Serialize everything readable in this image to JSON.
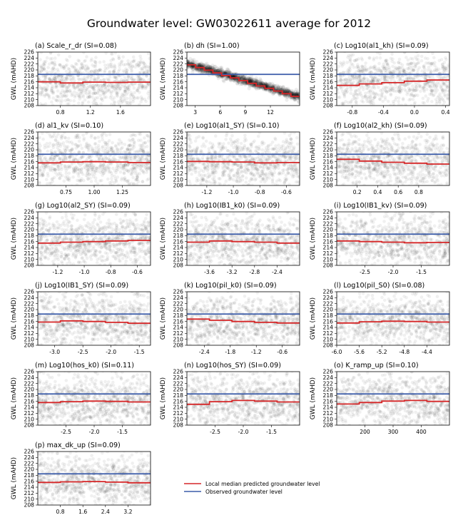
{
  "title": "Groundwater level: GW03022611 average for 2012",
  "ylabel": "GWL (mAHD)",
  "colors": {
    "predicted": "#d62728",
    "observed": "#3a5ba9",
    "points": "#000000"
  },
  "legend": {
    "position": "lower-right",
    "entries": [
      {
        "label": "Local median predicted groundwater level",
        "color": "#d62728"
      },
      {
        "label": "Observed groundwater level",
        "color": "#3a5ba9"
      }
    ]
  },
  "chart_data": [
    {
      "type": "scatter",
      "title": "(a) Scale_r_dr (SI=0.08)",
      "xlim": [
        0.5,
        2.0
      ],
      "ylim": [
        208,
        226
      ],
      "xticks": [
        "0.8",
        "1.2",
        "1.6"
      ],
      "xtick_values": [
        0.8,
        1.2,
        1.6
      ],
      "yticks": [
        208,
        210,
        212,
        214,
        216,
        218,
        220,
        222,
        224,
        226
      ],
      "observed": 218.5,
      "median": [
        216.0,
        215.6,
        215.9,
        215.8,
        215.9
      ]
    },
    {
      "type": "scatter",
      "title": "(b) dh (SI=1.00)",
      "xlim": [
        2.0,
        15.5
      ],
      "ylim": [
        208,
        226
      ],
      "xticks": [
        "3",
        "6",
        "9",
        "12"
      ],
      "xtick_values": [
        3,
        6,
        9,
        12
      ],
      "yticks": [
        208,
        210,
        212,
        214,
        216,
        218,
        220,
        222,
        224,
        226
      ],
      "observed": 218.5,
      "median": [
        221.7,
        220.8,
        219.9,
        219.0,
        218.1,
        217.3,
        216.4,
        215.5,
        214.6,
        213.8,
        212.9,
        212.0,
        211.1
      ]
    },
    {
      "type": "scatter",
      "title": "(c) Log10(al1_kh) (SI=0.09)",
      "xlim": [
        -1.0,
        0.45
      ],
      "ylim": [
        208,
        226
      ],
      "xticks": [
        "-0.8",
        "-0.4",
        "0.0",
        "0.4"
      ],
      "xtick_values": [
        -0.8,
        -0.4,
        0.0,
        0.4
      ],
      "yticks": [
        208,
        210,
        212,
        214,
        216,
        218,
        220,
        222,
        224,
        226
      ],
      "observed": 218.5,
      "median": [
        214.8,
        215.3,
        215.7,
        216.2,
        216.6
      ]
    },
    {
      "type": "scatter",
      "title": "(d) al1_kv (SI=0.10)",
      "xlim": [
        0.5,
        1.5
      ],
      "ylim": [
        208,
        226
      ],
      "xticks": [
        "0.75",
        "1.00",
        "1.25"
      ],
      "xtick_values": [
        0.75,
        1.0,
        1.25
      ],
      "yticks": [
        208,
        210,
        212,
        214,
        216,
        218,
        220,
        222,
        224,
        226
      ],
      "observed": 218.5,
      "median": [
        215.6,
        215.9,
        216.0,
        215.9,
        215.7
      ]
    },
    {
      "type": "scatter",
      "title": "(e) Log10(al1_SY) (SI=0.10)",
      "xlim": [
        -1.35,
        -0.5
      ],
      "ylim": [
        208,
        226
      ],
      "xticks": [
        "-1.2",
        "-1.0",
        "-0.8",
        "-0.6"
      ],
      "xtick_values": [
        -1.2,
        -1.0,
        -0.8,
        -0.6
      ],
      "yticks": [
        208,
        210,
        212,
        214,
        216,
        218,
        220,
        222,
        224,
        226
      ],
      "observed": 218.5,
      "median": [
        216.1,
        216.0,
        215.9,
        215.6,
        215.7
      ]
    },
    {
      "type": "scatter",
      "title": "(f) Log10(al2_kh) (SI=0.09)",
      "xlim": [
        0.0,
        1.1
      ],
      "ylim": [
        208,
        226
      ],
      "xticks": [
        "0.2",
        "0.4",
        "0.6",
        "0.8"
      ],
      "xtick_values": [
        0.2,
        0.4,
        0.6,
        0.8
      ],
      "yticks": [
        208,
        210,
        212,
        214,
        216,
        218,
        220,
        222,
        224,
        226
      ],
      "observed": 218.5,
      "median": [
        216.8,
        216.2,
        215.8,
        215.5,
        215.2
      ]
    },
    {
      "type": "scatter",
      "title": "(g) Log10(al2_SY) (SI=0.09)",
      "xlim": [
        -1.35,
        -0.5
      ],
      "ylim": [
        208,
        226
      ],
      "xticks": [
        "-1.2",
        "-1.0",
        "-0.8",
        "-0.6"
      ],
      "xtick_values": [
        -1.2,
        -1.0,
        -0.8,
        -0.6
      ],
      "yticks": [
        208,
        210,
        212,
        214,
        216,
        218,
        220,
        222,
        224,
        226
      ],
      "observed": 218.5,
      "median": [
        215.5,
        215.8,
        216.0,
        216.2,
        216.4
      ]
    },
    {
      "type": "scatter",
      "title": "(h) Log10(IB1_k0) (SI=0.09)",
      "xlim": [
        -4.0,
        -2.0
      ],
      "ylim": [
        208,
        226
      ],
      "xticks": [
        "-3.6",
        "-3.2",
        "-2.8",
        "-2.4"
      ],
      "xtick_values": [
        -3.6,
        -3.2,
        -2.8,
        -2.4
      ],
      "yticks": [
        208,
        210,
        212,
        214,
        216,
        218,
        220,
        222,
        224,
        226
      ],
      "observed": 218.5,
      "median": [
        215.8,
        216.2,
        216.0,
        215.8,
        215.5
      ]
    },
    {
      "type": "scatter",
      "title": "(i) Log10(IB1_kv) (SI=0.09)",
      "xlim": [
        -3.0,
        -1.0
      ],
      "ylim": [
        208,
        226
      ],
      "xticks": [
        "-2.5",
        "-2.0",
        "-1.5"
      ],
      "xtick_values": [
        -2.5,
        -2.0,
        -1.5
      ],
      "yticks": [
        208,
        210,
        212,
        214,
        216,
        218,
        220,
        222,
        224,
        226
      ],
      "observed": 218.5,
      "median": [
        216.2,
        216.0,
        215.8,
        215.6,
        215.7
      ]
    },
    {
      "type": "scatter",
      "title": "(j) Log10(IB1_SY) (SI=0.09)",
      "xlim": [
        -3.3,
        -1.3
      ],
      "ylim": [
        208,
        226
      ],
      "xticks": [
        "-3.0",
        "-2.5",
        "-2.0",
        "-1.5"
      ],
      "xtick_values": [
        -3.0,
        -2.5,
        -2.0,
        -1.5
      ],
      "yticks": [
        208,
        210,
        212,
        214,
        216,
        218,
        220,
        222,
        224,
        226
      ],
      "observed": 218.5,
      "median": [
        215.8,
        216.2,
        216.0,
        215.7,
        215.4
      ]
    },
    {
      "type": "scatter",
      "title": "(k) Log10(pil_k0) (SI=0.09)",
      "xlim": [
        -2.8,
        -0.2
      ],
      "ylim": [
        208,
        226
      ],
      "xticks": [
        "-2.4",
        "-1.8",
        "-1.2",
        "-0.6"
      ],
      "xtick_values": [
        -2.4,
        -1.8,
        -1.2,
        -0.6
      ],
      "yticks": [
        208,
        210,
        212,
        214,
        216,
        218,
        220,
        222,
        224,
        226
      ],
      "observed": 218.5,
      "median": [
        216.8,
        216.4,
        216.0,
        215.7,
        215.5
      ]
    },
    {
      "type": "scatter",
      "title": "(l) Log10(pil_S0) (SI=0.08)",
      "xlim": [
        -6.0,
        -4.0
      ],
      "ylim": [
        208,
        226
      ],
      "xticks": [
        "-6.0",
        "-5.6",
        "-5.2",
        "-4.8",
        "-4.4"
      ],
      "xtick_values": [
        -6.0,
        -5.6,
        -5.2,
        -4.8,
        -4.4
      ],
      "yticks": [
        208,
        210,
        212,
        214,
        216,
        218,
        220,
        222,
        224,
        226
      ],
      "observed": 218.5,
      "median": [
        215.5,
        215.9,
        216.1,
        216.0,
        215.8
      ]
    },
    {
      "type": "scatter",
      "title": "(m) Log10(hos_k0) (SI=0.11)",
      "xlim": [
        -3.0,
        -1.0
      ],
      "ylim": [
        208,
        226
      ],
      "xticks": [
        "-2.5",
        "-2.0",
        "-1.5"
      ],
      "xtick_values": [
        -2.5,
        -2.0,
        -1.5
      ],
      "yticks": [
        208,
        210,
        212,
        214,
        216,
        218,
        220,
        222,
        224,
        226
      ],
      "observed": 218.5,
      "median": [
        215.6,
        215.9,
        216.1,
        216.0,
        215.8
      ]
    },
    {
      "type": "scatter",
      "title": "(n) Log10(hos_SY) (SI=0.09)",
      "xlim": [
        -3.0,
        -1.0
      ],
      "ylim": [
        208,
        226
      ],
      "xticks": [
        "-2.5",
        "-2.0",
        "-1.5"
      ],
      "xtick_values": [
        -2.5,
        -2.0,
        -1.5
      ],
      "yticks": [
        208,
        210,
        212,
        214,
        216,
        218,
        220,
        222,
        224,
        226
      ],
      "observed": 218.5,
      "median": [
        215.0,
        215.9,
        216.3,
        216.1,
        215.8
      ]
    },
    {
      "type": "scatter",
      "title": "(o) K_ramp_up (SI=0.10)",
      "xlim": [
        100,
        500
      ],
      "ylim": [
        208,
        226
      ],
      "xticks": [
        "200",
        "300",
        "400"
      ],
      "xtick_values": [
        200,
        300,
        400
      ],
      "yticks": [
        208,
        210,
        212,
        214,
        216,
        218,
        220,
        222,
        224,
        226
      ],
      "observed": 218.5,
      "median": [
        215.1,
        215.6,
        216.1,
        216.3,
        216.0
      ]
    },
    {
      "type": "scatter",
      "title": "(p) max_dk_up (SI=0.09)",
      "xlim": [
        0.0,
        4.0
      ],
      "ylim": [
        208,
        226
      ],
      "xticks": [
        "0.8",
        "1.6",
        "2.4",
        "3.2"
      ],
      "xtick_values": [
        0.8,
        1.6,
        2.4,
        3.2
      ],
      "yticks": [
        208,
        210,
        212,
        214,
        216,
        218,
        220,
        222,
        224,
        226
      ],
      "observed": 218.5,
      "median": [
        215.6,
        215.8,
        215.9,
        215.7,
        215.5
      ]
    }
  ]
}
